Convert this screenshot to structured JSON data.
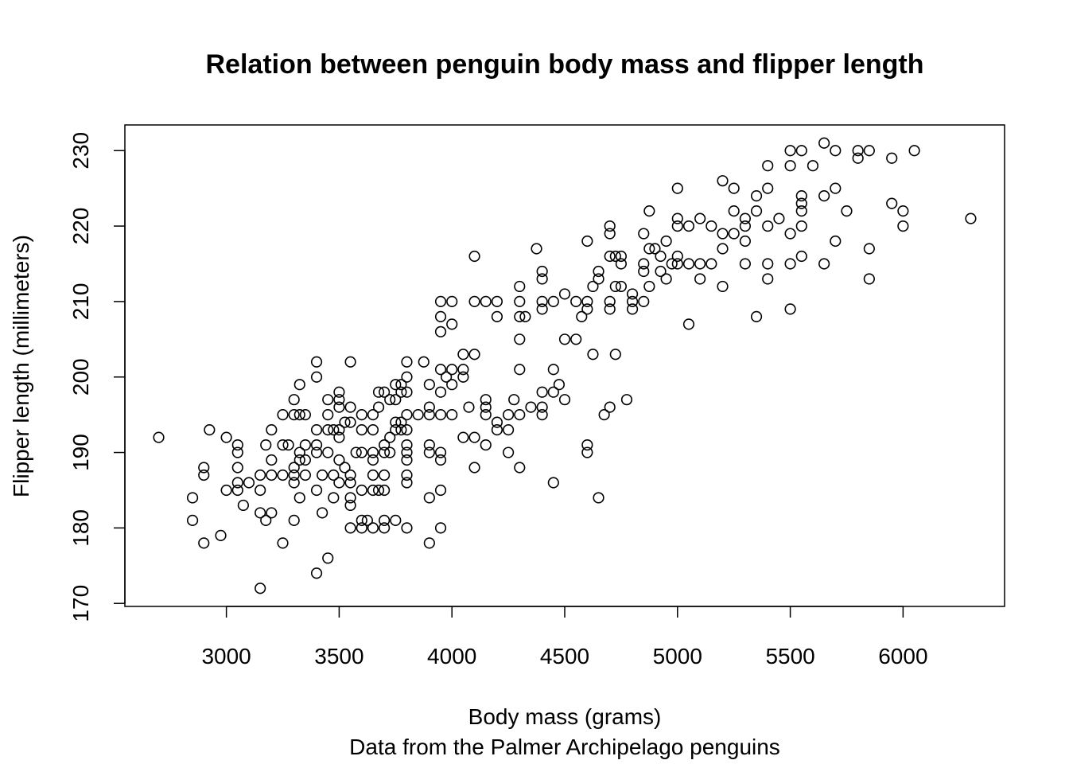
{
  "chart_data": {
    "type": "scatter",
    "title": "Relation between penguin body mass and flipper length",
    "xlabel": "Body mass (grams)",
    "ylabel": "Flipper length (millimeters)",
    "caption": "Data from the Palmer Archipelago penguins",
    "xlim": [
      2550,
      6450
    ],
    "ylim": [
      169.6,
      233.4
    ],
    "xticks": [
      3000,
      3500,
      4000,
      4500,
      5000,
      5500,
      6000
    ],
    "yticks": [
      170,
      180,
      190,
      200,
      210,
      220,
      230
    ],
    "grid": false,
    "legend": "none",
    "marker": "open-circle",
    "points": [
      [
        2700,
        192
      ],
      [
        2850,
        184
      ],
      [
        2850,
        181
      ],
      [
        2900,
        188
      ],
      [
        2900,
        187
      ],
      [
        2900,
        178
      ],
      [
        2925,
        193
      ],
      [
        2975,
        179
      ],
      [
        3000,
        192
      ],
      [
        3000,
        185
      ],
      [
        3050,
        191
      ],
      [
        3050,
        190
      ],
      [
        3050,
        188
      ],
      [
        3050,
        186
      ],
      [
        3050,
        185
      ],
      [
        3075,
        183
      ],
      [
        3100,
        186
      ],
      [
        3150,
        187
      ],
      [
        3150,
        185
      ],
      [
        3150,
        182
      ],
      [
        3150,
        172
      ],
      [
        3175,
        191
      ],
      [
        3175,
        181
      ],
      [
        3200,
        193
      ],
      [
        3200,
        189
      ],
      [
        3200,
        187
      ],
      [
        3200,
        182
      ],
      [
        3250,
        195
      ],
      [
        3250,
        191
      ],
      [
        3250,
        187
      ],
      [
        3250,
        178
      ],
      [
        3275,
        191
      ],
      [
        3300,
        197
      ],
      [
        3300,
        195
      ],
      [
        3300,
        188
      ],
      [
        3300,
        187
      ],
      [
        3300,
        186
      ],
      [
        3300,
        181
      ],
      [
        3325,
        199
      ],
      [
        3325,
        195
      ],
      [
        3325,
        190
      ],
      [
        3325,
        189
      ],
      [
        3325,
        184
      ],
      [
        3350,
        195
      ],
      [
        3350,
        191
      ],
      [
        3350,
        189
      ],
      [
        3350,
        187
      ],
      [
        3400,
        202
      ],
      [
        3400,
        200
      ],
      [
        3400,
        193
      ],
      [
        3400,
        191
      ],
      [
        3400,
        190
      ],
      [
        3400,
        185
      ],
      [
        3400,
        174
      ],
      [
        3425,
        187
      ],
      [
        3425,
        182
      ],
      [
        3450,
        197
      ],
      [
        3450,
        195
      ],
      [
        3450,
        193
      ],
      [
        3450,
        190
      ],
      [
        3450,
        176
      ],
      [
        3475,
        193
      ],
      [
        3475,
        187
      ],
      [
        3475,
        184
      ],
      [
        3500,
        198
      ],
      [
        3500,
        197
      ],
      [
        3500,
        196
      ],
      [
        3500,
        193
      ],
      [
        3500,
        192
      ],
      [
        3500,
        189
      ],
      [
        3500,
        186
      ],
      [
        3525,
        194
      ],
      [
        3525,
        188
      ],
      [
        3550,
        202
      ],
      [
        3550,
        196
      ],
      [
        3550,
        194
      ],
      [
        3550,
        187
      ],
      [
        3550,
        186
      ],
      [
        3550,
        184
      ],
      [
        3550,
        183
      ],
      [
        3550,
        180
      ],
      [
        3575,
        190
      ],
      [
        3600,
        195
      ],
      [
        3600,
        193
      ],
      [
        3600,
        190
      ],
      [
        3600,
        185
      ],
      [
        3600,
        181
      ],
      [
        3600,
        180
      ],
      [
        3625,
        181
      ],
      [
        3650,
        195
      ],
      [
        3650,
        193
      ],
      [
        3650,
        190
      ],
      [
        3650,
        189
      ],
      [
        3650,
        187
      ],
      [
        3650,
        185
      ],
      [
        3650,
        180
      ],
      [
        3675,
        198
      ],
      [
        3675,
        196
      ],
      [
        3675,
        185
      ],
      [
        3700,
        198
      ],
      [
        3700,
        191
      ],
      [
        3700,
        190
      ],
      [
        3700,
        187
      ],
      [
        3700,
        185
      ],
      [
        3700,
        181
      ],
      [
        3700,
        180
      ],
      [
        3725,
        197
      ],
      [
        3725,
        192
      ],
      [
        3725,
        190
      ],
      [
        3750,
        199
      ],
      [
        3750,
        197
      ],
      [
        3750,
        194
      ],
      [
        3750,
        193
      ],
      [
        3750,
        181
      ],
      [
        3775,
        199
      ],
      [
        3775,
        198
      ],
      [
        3775,
        194
      ],
      [
        3775,
        193
      ],
      [
        3800,
        202
      ],
      [
        3800,
        200
      ],
      [
        3800,
        198
      ],
      [
        3800,
        195
      ],
      [
        3800,
        193
      ],
      [
        3800,
        191
      ],
      [
        3800,
        190
      ],
      [
        3800,
        189
      ],
      [
        3800,
        187
      ],
      [
        3800,
        186
      ],
      [
        3800,
        180
      ],
      [
        3850,
        195
      ],
      [
        3875,
        202
      ],
      [
        3900,
        199
      ],
      [
        3900,
        196
      ],
      [
        3900,
        195
      ],
      [
        3900,
        191
      ],
      [
        3900,
        190
      ],
      [
        3900,
        184
      ],
      [
        3900,
        178
      ],
      [
        3950,
        210
      ],
      [
        3950,
        208
      ],
      [
        3950,
        206
      ],
      [
        3950,
        201
      ],
      [
        3950,
        198
      ],
      [
        3950,
        195
      ],
      [
        3950,
        190
      ],
      [
        3950,
        189
      ],
      [
        3950,
        185
      ],
      [
        3950,
        180
      ],
      [
        3975,
        200
      ],
      [
        4000,
        210
      ],
      [
        4000,
        207
      ],
      [
        4000,
        201
      ],
      [
        4000,
        199
      ],
      [
        4000,
        195
      ],
      [
        4050,
        203
      ],
      [
        4050,
        201
      ],
      [
        4050,
        200
      ],
      [
        4050,
        192
      ],
      [
        4075,
        196
      ],
      [
        4100,
        216
      ],
      [
        4100,
        210
      ],
      [
        4100,
        203
      ],
      [
        4100,
        192
      ],
      [
        4100,
        188
      ],
      [
        4150,
        210
      ],
      [
        4150,
        197
      ],
      [
        4150,
        196
      ],
      [
        4150,
        195
      ],
      [
        4150,
        191
      ],
      [
        4200,
        210
      ],
      [
        4200,
        208
      ],
      [
        4200,
        194
      ],
      [
        4200,
        193
      ],
      [
        4250,
        195
      ],
      [
        4250,
        193
      ],
      [
        4250,
        190
      ],
      [
        4275,
        197
      ],
      [
        4300,
        212
      ],
      [
        4300,
        210
      ],
      [
        4300,
        208
      ],
      [
        4300,
        205
      ],
      [
        4300,
        201
      ],
      [
        4300,
        195
      ],
      [
        4300,
        188
      ],
      [
        4325,
        208
      ],
      [
        4350,
        196
      ],
      [
        4375,
        217
      ],
      [
        4400,
        214
      ],
      [
        4400,
        213
      ],
      [
        4400,
        210
      ],
      [
        4400,
        209
      ],
      [
        4400,
        198
      ],
      [
        4400,
        196
      ],
      [
        4400,
        195
      ],
      [
        4450,
        210
      ],
      [
        4450,
        201
      ],
      [
        4450,
        198
      ],
      [
        4450,
        186
      ],
      [
        4475,
        199
      ],
      [
        4500,
        211
      ],
      [
        4500,
        205
      ],
      [
        4500,
        197
      ],
      [
        4550,
        210
      ],
      [
        4550,
        205
      ],
      [
        4575,
        208
      ],
      [
        4600,
        218
      ],
      [
        4600,
        210
      ],
      [
        4600,
        209
      ],
      [
        4600,
        191
      ],
      [
        4600,
        190
      ],
      [
        4625,
        212
      ],
      [
        4625,
        203
      ],
      [
        4650,
        214
      ],
      [
        4650,
        213
      ],
      [
        4650,
        184
      ],
      [
        4675,
        195
      ],
      [
        4700,
        220
      ],
      [
        4700,
        219
      ],
      [
        4700,
        216
      ],
      [
        4700,
        210
      ],
      [
        4700,
        209
      ],
      [
        4700,
        196
      ],
      [
        4725,
        216
      ],
      [
        4725,
        212
      ],
      [
        4725,
        203
      ],
      [
        4750,
        216
      ],
      [
        4750,
        215
      ],
      [
        4750,
        212
      ],
      [
        4775,
        197
      ],
      [
        4800,
        211
      ],
      [
        4800,
        210
      ],
      [
        4800,
        209
      ],
      [
        4850,
        219
      ],
      [
        4850,
        215
      ],
      [
        4850,
        214
      ],
      [
        4850,
        210
      ],
      [
        4875,
        222
      ],
      [
        4875,
        217
      ],
      [
        4875,
        212
      ],
      [
        4900,
        217
      ],
      [
        4925,
        216
      ],
      [
        4925,
        214
      ],
      [
        4950,
        218
      ],
      [
        4950,
        213
      ],
      [
        4975,
        215
      ],
      [
        5000,
        225
      ],
      [
        5000,
        221
      ],
      [
        5000,
        220
      ],
      [
        5000,
        216
      ],
      [
        5000,
        215
      ],
      [
        5050,
        220
      ],
      [
        5050,
        215
      ],
      [
        5050,
        207
      ],
      [
        5100,
        221
      ],
      [
        5100,
        215
      ],
      [
        5100,
        213
      ],
      [
        5150,
        220
      ],
      [
        5150,
        215
      ],
      [
        5200,
        226
      ],
      [
        5200,
        219
      ],
      [
        5200,
        217
      ],
      [
        5200,
        212
      ],
      [
        5250,
        225
      ],
      [
        5250,
        222
      ],
      [
        5250,
        219
      ],
      [
        5300,
        221
      ],
      [
        5300,
        220
      ],
      [
        5300,
        218
      ],
      [
        5300,
        215
      ],
      [
        5350,
        224
      ],
      [
        5350,
        222
      ],
      [
        5350,
        208
      ],
      [
        5400,
        228
      ],
      [
        5400,
        225
      ],
      [
        5400,
        220
      ],
      [
        5400,
        215
      ],
      [
        5400,
        213
      ],
      [
        5450,
        221
      ],
      [
        5500,
        230
      ],
      [
        5500,
        228
      ],
      [
        5500,
        219
      ],
      [
        5500,
        215
      ],
      [
        5500,
        209
      ],
      [
        5550,
        230
      ],
      [
        5550,
        224
      ],
      [
        5550,
        223
      ],
      [
        5550,
        222
      ],
      [
        5550,
        220
      ],
      [
        5550,
        216
      ],
      [
        5600,
        228
      ],
      [
        5650,
        231
      ],
      [
        5650,
        224
      ],
      [
        5650,
        215
      ],
      [
        5700,
        230
      ],
      [
        5700,
        225
      ],
      [
        5700,
        218
      ],
      [
        5750,
        222
      ],
      [
        5800,
        230
      ],
      [
        5800,
        229
      ],
      [
        5850,
        230
      ],
      [
        5850,
        217
      ],
      [
        5850,
        213
      ],
      [
        5950,
        229
      ],
      [
        5950,
        223
      ],
      [
        6000,
        222
      ],
      [
        6000,
        220
      ],
      [
        6050,
        230
      ],
      [
        6300,
        221
      ]
    ]
  }
}
